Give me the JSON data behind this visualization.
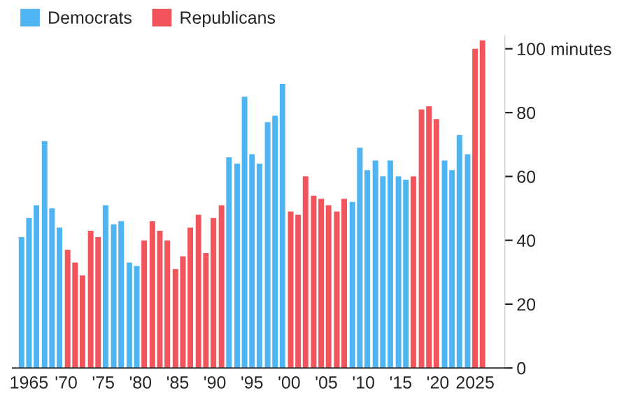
{
  "chart_data": {
    "type": "bar",
    "x": [
      1964.0,
      1965.0,
      1966.0,
      1967.1,
      1968.1,
      1969.1,
      1970.2,
      1971.2,
      1972.2,
      1973.3,
      1974.3,
      1975.3,
      1976.4,
      1977.4,
      1978.5,
      1979.5,
      1980.5,
      1981.6,
      1982.6,
      1983.6,
      1984.7,
      1985.7,
      1986.7,
      1987.8,
      1988.8,
      1989.8,
      1990.9,
      1991.9,
      1993.0,
      1994.0,
      1995.0,
      1996.0,
      1997.1,
      1998.1,
      1999.1,
      2000.2,
      2001.2,
      2002.2,
      2003.3,
      2004.3,
      2005.3,
      2006.4,
      2007.4,
      2008.5,
      2009.5,
      2010.5,
      2011.6,
      2012.6,
      2013.6,
      2014.7,
      2015.7,
      2016.7,
      2017.8,
      2018.8,
      2019.8,
      2020.9,
      2021.9,
      2022.9,
      2024.0,
      2025.0,
      2026.0
    ],
    "series": [
      {
        "name": "Democrats",
        "color": "#4fb4f2",
        "values": [
          41,
          47,
          51,
          71,
          50,
          44,
          null,
          null,
          null,
          null,
          null,
          51,
          45,
          46,
          33,
          32,
          null,
          null,
          null,
          null,
          null,
          null,
          null,
          null,
          null,
          null,
          null,
          66,
          64,
          85,
          67,
          64,
          77,
          79,
          89,
          null,
          null,
          null,
          null,
          null,
          null,
          null,
          null,
          52,
          69,
          62,
          65,
          60,
          65,
          60,
          59,
          null,
          null,
          null,
          null,
          65,
          62,
          73,
          67,
          null,
          null
        ]
      },
      {
        "name": "Republicans",
        "color": "#f2545b",
        "values": [
          null,
          null,
          null,
          null,
          null,
          null,
          37,
          33,
          29,
          43,
          41,
          null,
          null,
          null,
          null,
          null,
          40,
          46,
          43,
          40,
          31,
          35,
          44,
          48,
          36,
          47,
          51,
          null,
          null,
          null,
          null,
          null,
          null,
          null,
          null,
          49,
          48,
          60,
          54,
          53,
          51,
          49,
          53,
          null,
          null,
          null,
          null,
          null,
          null,
          null,
          null,
          60,
          81,
          82,
          78,
          null,
          null,
          null,
          null,
          100,
          102.6
        ]
      }
    ],
    "xlim": [
      1962.8,
      2029
    ],
    "xticks": [
      {
        "value": 1965,
        "label": "1965"
      },
      {
        "value": 1970,
        "label": "'70"
      },
      {
        "value": 1975,
        "label": "'75"
      },
      {
        "value": 1980,
        "label": "'80"
      },
      {
        "value": 1985,
        "label": "'85"
      },
      {
        "value": 1990,
        "label": "'90"
      },
      {
        "value": 1995,
        "label": "'95"
      },
      {
        "value": 2000,
        "label": "'00"
      },
      {
        "value": 2005,
        "label": "'05"
      },
      {
        "value": 2010,
        "label": "'10"
      },
      {
        "value": 2015,
        "label": "'15"
      },
      {
        "value": 2020,
        "label": "'20"
      },
      {
        "value": 2025,
        "label": "2025"
      }
    ],
    "ylim": [
      0,
      104
    ],
    "yticks": [
      0,
      20,
      40,
      60,
      80,
      {
        "value": 100,
        "label": "100 minutes"
      }
    ],
    "legend": "top left",
    "grid": false
  }
}
